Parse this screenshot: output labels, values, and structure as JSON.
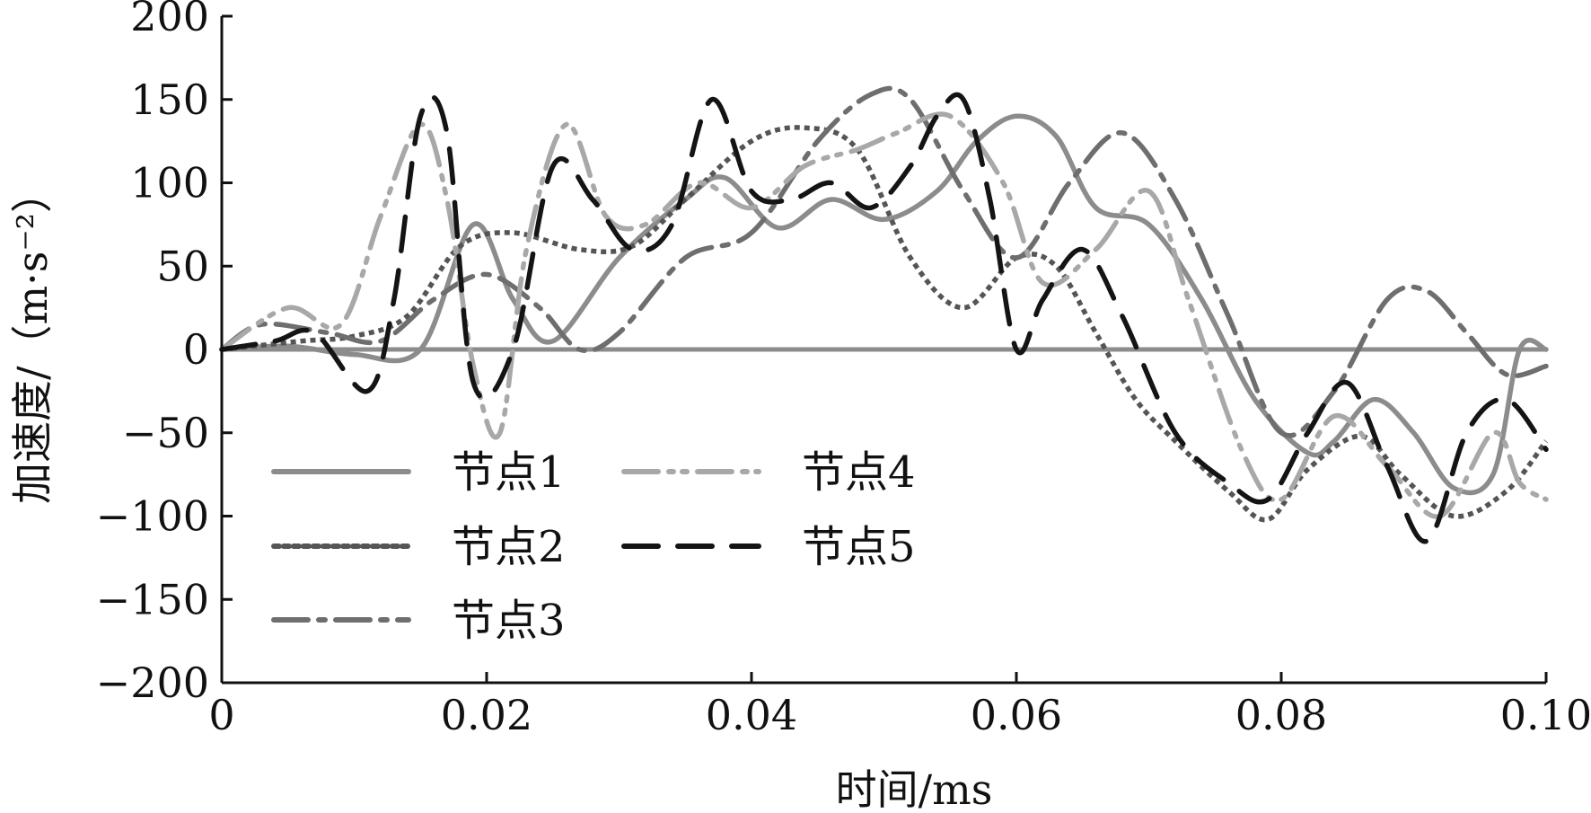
{
  "chart_data": {
    "type": "line",
    "title": "",
    "xlabel": "时间/ms",
    "ylabel": "加速度/（m·s⁻²）",
    "xlim": [
      0,
      0.1
    ],
    "ylim": [
      -200,
      200
    ],
    "x_ticks": [
      0,
      0.02,
      0.04,
      0.06,
      0.08,
      0.1
    ],
    "x_tick_labels": [
      "0",
      "0.02",
      "0.04",
      "0.06",
      "0.08",
      "0.10"
    ],
    "y_ticks": [
      200,
      150,
      100,
      50,
      0,
      -50,
      -100,
      -150,
      -200
    ],
    "y_tick_labels": [
      "200",
      "150",
      "100",
      "50",
      "0",
      "−50",
      "−100",
      "−150",
      "−200"
    ],
    "grid": false,
    "legend_position": "lower-left",
    "zero_line": true,
    "series": [
      {
        "name": "节点1",
        "color": "#8c8c8c",
        "dash": "solid",
        "x": [
          0,
          0.005,
          0.01,
          0.015,
          0.019,
          0.022,
          0.025,
          0.03,
          0.035,
          0.038,
          0.042,
          0.046,
          0.05,
          0.054,
          0.057,
          0.06,
          0.063,
          0.066,
          0.07,
          0.074,
          0.078,
          0.082,
          0.084,
          0.087,
          0.09,
          0.093,
          0.096,
          0.098,
          0.1
        ],
        "y": [
          0,
          2,
          -3,
          0,
          75,
          30,
          5,
          55,
          90,
          103,
          73,
          90,
          78,
          95,
          125,
          140,
          128,
          85,
          75,
          30,
          -30,
          -62,
          -55,
          -30,
          -50,
          -83,
          -75,
          0,
          0
        ]
      },
      {
        "name": "节点2",
        "color": "#555555",
        "dash": "dotted",
        "x": [
          0,
          0.006,
          0.01,
          0.014,
          0.018,
          0.022,
          0.027,
          0.031,
          0.035,
          0.04,
          0.044,
          0.048,
          0.052,
          0.056,
          0.06,
          0.063,
          0.066,
          0.069,
          0.072,
          0.076,
          0.079,
          0.082,
          0.086,
          0.089,
          0.093,
          0.097,
          0.1
        ],
        "y": [
          0,
          5,
          8,
          20,
          62,
          70,
          60,
          62,
          90,
          125,
          133,
          120,
          55,
          25,
          55,
          50,
          10,
          -30,
          -55,
          -85,
          -102,
          -72,
          -52,
          -75,
          -100,
          -85,
          -55
        ]
      },
      {
        "name": "节点3",
        "color": "#6e6e6e",
        "dash": "dashdot",
        "x": [
          0,
          0.003,
          0.008,
          0.012,
          0.016,
          0.02,
          0.024,
          0.027,
          0.03,
          0.035,
          0.04,
          0.045,
          0.049,
          0.052,
          0.056,
          0.06,
          0.064,
          0.068,
          0.072,
          0.076,
          0.08,
          0.084,
          0.088,
          0.091,
          0.094,
          0.097,
          0.1
        ],
        "y": [
          0,
          15,
          10,
          5,
          30,
          45,
          25,
          0,
          10,
          55,
          70,
          125,
          153,
          150,
          95,
          55,
          100,
          130,
          90,
          20,
          -50,
          -25,
          30,
          35,
          10,
          -15,
          -10
        ]
      },
      {
        "name": "节点4",
        "color": "#a8a8a8",
        "dash": "dashdotdot",
        "x": [
          0,
          0.005,
          0.009,
          0.012,
          0.015,
          0.017,
          0.019,
          0.021,
          0.023,
          0.026,
          0.029,
          0.032,
          0.036,
          0.04,
          0.044,
          0.048,
          0.051,
          0.055,
          0.059,
          0.062,
          0.066,
          0.07,
          0.073,
          0.077,
          0.08,
          0.084,
          0.088,
          0.092,
          0.096,
          0.098,
          0.1
        ],
        "y": [
          0,
          25,
          15,
          80,
          135,
          90,
          -10,
          -50,
          60,
          135,
          80,
          75,
          100,
          85,
          110,
          120,
          130,
          140,
          100,
          40,
          60,
          95,
          30,
          -60,
          -90,
          -40,
          -70,
          -100,
          -50,
          -80,
          -90
        ]
      },
      {
        "name": "节点5",
        "color": "#141414",
        "dash": "longdash",
        "x": [
          0,
          0.004,
          0.007,
          0.011,
          0.013,
          0.015,
          0.017,
          0.019,
          0.022,
          0.025,
          0.028,
          0.031,
          0.034,
          0.037,
          0.04,
          0.043,
          0.046,
          0.049,
          0.052,
          0.054,
          0.056,
          0.058,
          0.06,
          0.062,
          0.065,
          0.068,
          0.072,
          0.076,
          0.079,
          0.082,
          0.085,
          0.088,
          0.091,
          0.094,
          0.097,
          0.1
        ],
        "y": [
          0,
          5,
          10,
          -25,
          30,
          140,
          130,
          -20,
          0,
          110,
          90,
          60,
          75,
          150,
          95,
          90,
          100,
          85,
          110,
          140,
          150,
          90,
          0,
          30,
          60,
          20,
          -50,
          -80,
          -90,
          -50,
          -20,
          -70,
          -115,
          -50,
          -30,
          -60
        ]
      }
    ]
  }
}
